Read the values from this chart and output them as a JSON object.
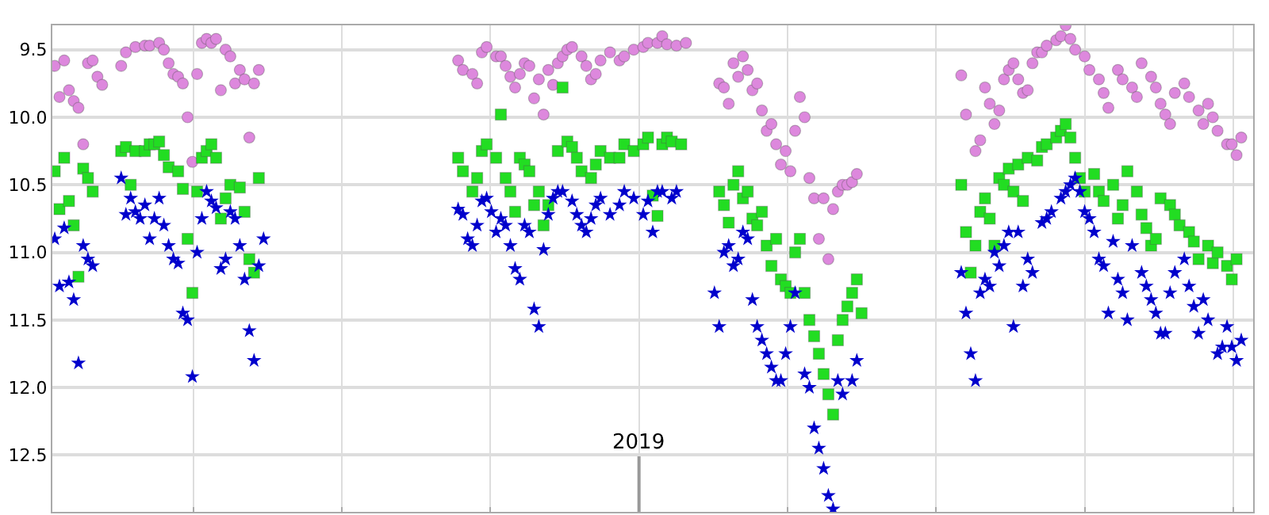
{
  "chart_data": {
    "type": "scatter",
    "categories": [
      null,
      null,
      null,
      null,
      null,
      null,
      null,
      null,
      null,
      null,
      null,
      null,
      null,
      null,
      null,
      null,
      null,
      null,
      null,
      null,
      null,
      null,
      null,
      null,
      null,
      null,
      null,
      null,
      null,
      null,
      null,
      null,
      null,
      null,
      null,
      null,
      null,
      null,
      null,
      null,
      null,
      null,
      null,
      null,
      null,
      null,
      null,
      null,
      null,
      null,
      null,
      null,
      null,
      null,
      null,
      null,
      null,
      null,
      null,
      null,
      null,
      null,
      null,
      null,
      null,
      null,
      null,
      null,
      null,
      null,
      null,
      null,
      null,
      null,
      null,
      null,
      null,
      null,
      null,
      null,
      null,
      null,
      null,
      null,
      null,
      null,
      null,
      null,
      null,
      null,
      null,
      null,
      null,
      null,
      null,
      null,
      null,
      null,
      null,
      null,
      null,
      null,
      null,
      null,
      null,
      null,
      null,
      null,
      null,
      null,
      null,
      null,
      null,
      null,
      null,
      null,
      null,
      null,
      null,
      null,
      null,
      null,
      null,
      null,
      null,
      null,
      null,
      null,
      null,
      null,
      null,
      null,
      null,
      null,
      null,
      null,
      null,
      null,
      null,
      null,
      null,
      null,
      null,
      null,
      null,
      null,
      null,
      null,
      null,
      null,
      null,
      null,
      null,
      null,
      null,
      null,
      null,
      null,
      null,
      null,
      null,
      null,
      null,
      null,
      null,
      null,
      null,
      null,
      null,
      null,
      null,
      null,
      null,
      null,
      null,
      null,
      null,
      null,
      null,
      null,
      null,
      null,
      null,
      null,
      null,
      null,
      null,
      null,
      null,
      null,
      null,
      null,
      null,
      null,
      null,
      null,
      null,
      null,
      null,
      null,
      null,
      null,
      null,
      null,
      null,
      null,
      null,
      null,
      null,
      null,
      null,
      null,
      null,
      null,
      null,
      null,
      null,
      null,
      null,
      null,
      null,
      null,
      null,
      null,
      null,
      null,
      null,
      null,
      null,
      null,
      null,
      null,
      null,
      null,
      null,
      null,
      null,
      null,
      null,
      null,
      null,
      null,
      null,
      null,
      null,
      null,
      null,
      null,
      null,
      null,
      null,
      null,
      null
    ],
    "ylim": [
      12.92,
      9.32
    ],
    "yticks": [
      {
        "value": 9.5,
        "label": "9.5"
      },
      {
        "value": 10,
        "label": "10.0"
      },
      {
        "value": 10.5,
        "label": "10.5"
      },
      {
        "value": 11,
        "label": "11.0"
      },
      {
        "value": 11.5,
        "label": "11.5"
      },
      {
        "value": 12,
        "label": "12.0"
      },
      {
        "value": 12.5,
        "label": "12.5"
      }
    ],
    "grid": true,
    "annotations": [
      "2019"
    ],
    "series": [
      {
        "color": "#dd88dd",
        "marker": "circle",
        "values": [
          9.62,
          9.85,
          9.58,
          9.8,
          9.88,
          9.93,
          10.2,
          9.6,
          9.58,
          9.7,
          9.76,
          null,
          null,
          null,
          9.62,
          9.52,
          null,
          9.48,
          null,
          9.47,
          9.47,
          null,
          9.45,
          9.5,
          9.6,
          9.68,
          9.7,
          9.75,
          10.0,
          10.33,
          9.68,
          9.45,
          9.42,
          9.45,
          9.42,
          9.8,
          9.5,
          9.55,
          9.75,
          9.65,
          9.72,
          10.15,
          9.75,
          9.65,
          null,
          null,
          null,
          null,
          null,
          null,
          null,
          null,
          null,
          null,
          null,
          null,
          null,
          null,
          null,
          null,
          null,
          null,
          null,
          null,
          null,
          null,
          null,
          null,
          null,
          null,
          null,
          null,
          null,
          null,
          null,
          null,
          null,
          null,
          null,
          null,
          null,
          null,
          null,
          null,
          null,
          9.58,
          9.65,
          null,
          9.68,
          9.75,
          9.52,
          9.48,
          null,
          9.55,
          9.55,
          9.62,
          9.7,
          9.78,
          9.68,
          9.6,
          9.62,
          9.86,
          9.72,
          9.98,
          9.65,
          9.76,
          9.6,
          9.55,
          9.5,
          9.48,
          null,
          9.55,
          9.62,
          9.72,
          9.68,
          9.58,
          null,
          9.52,
          null,
          9.58,
          9.55,
          null,
          9.5,
          null,
          9.48,
          9.45,
          null,
          9.45,
          9.4,
          9.46,
          null,
          9.47,
          null,
          9.45,
          null,
          null,
          null,
          null,
          null,
          null,
          9.75,
          9.78,
          9.9,
          9.6,
          9.7,
          9.55,
          9.65,
          9.8,
          9.75,
          9.95,
          10.1,
          10.05,
          10.2,
          10.35,
          10.25,
          10.4,
          10.1,
          9.85,
          10.0,
          10.45,
          10.6,
          10.9,
          10.6,
          11.05,
          10.68,
          10.55,
          10.5,
          10.5,
          10.48,
          10.42,
          null,
          null,
          null,
          null,
          null,
          null,
          null,
          null,
          null,
          null,
          null,
          null,
          null,
          null,
          null,
          null,
          null,
          null,
          null,
          null,
          null,
          9.69,
          9.98,
          null,
          10.25,
          10.17,
          9.78,
          9.9,
          10.05,
          9.95,
          9.72,
          9.65,
          9.6,
          9.72,
          9.82,
          9.8,
          9.6,
          9.52,
          9.52,
          9.47,
          null,
          9.43,
          9.4,
          9.32,
          9.42,
          9.5,
          null,
          9.55,
          9.65,
          null,
          9.72,
          9.82,
          9.93,
          null,
          9.65,
          9.72,
          null,
          9.78,
          9.85,
          9.6,
          null,
          9.7,
          9.78,
          9.9,
          9.98,
          10.05,
          9.82,
          null,
          9.75,
          9.85,
          null,
          9.95,
          10.05,
          9.9,
          10.0,
          10.1,
          null,
          10.2,
          10.2,
          10.28,
          10.15,
          null,
          null
        ]
      },
      {
        "color": "#22dd22",
        "marker": "square",
        "values": [
          10.4,
          10.68,
          10.3,
          10.62,
          10.8,
          11.18,
          10.38,
          10.45,
          10.55,
          null,
          null,
          null,
          null,
          null,
          10.25,
          10.22,
          10.5,
          10.25,
          null,
          10.25,
          10.2,
          10.2,
          10.18,
          10.28,
          10.37,
          null,
          10.4,
          10.53,
          10.9,
          11.3,
          10.55,
          10.3,
          10.25,
          10.2,
          10.3,
          10.75,
          10.6,
          10.5,
          null,
          10.52,
          10.7,
          11.05,
          11.15,
          10.45,
          null,
          null,
          null,
          null,
          null,
          null,
          null,
          null,
          null,
          null,
          null,
          null,
          null,
          null,
          null,
          null,
          null,
          null,
          null,
          null,
          null,
          null,
          null,
          null,
          null,
          null,
          null,
          null,
          null,
          null,
          null,
          null,
          null,
          null,
          null,
          null,
          null,
          null,
          null,
          null,
          null,
          10.3,
          10.4,
          null,
          10.55,
          10.45,
          10.25,
          10.2,
          null,
          10.3,
          9.98,
          10.45,
          10.55,
          10.7,
          10.3,
          10.35,
          10.4,
          10.65,
          10.55,
          10.8,
          10.65,
          null,
          10.25,
          9.78,
          10.18,
          10.22,
          10.3,
          10.4,
          null,
          10.45,
          10.35,
          10.25,
          null,
          10.3,
          null,
          10.3,
          10.2,
          null,
          10.25,
          null,
          10.2,
          10.15,
          10.58,
          10.73,
          10.2,
          10.15,
          10.18,
          null,
          10.2,
          null,
          null,
          null,
          null,
          null,
          null,
          null,
          10.55,
          10.65,
          10.78,
          10.5,
          10.4,
          10.6,
          10.55,
          10.75,
          10.8,
          10.7,
          10.95,
          11.1,
          10.9,
          11.2,
          11.25,
          11.3,
          11.0,
          10.9,
          11.3,
          11.5,
          11.62,
          11.75,
          11.9,
          12.05,
          12.2,
          11.65,
          11.5,
          11.4,
          11.3,
          11.2,
          11.45,
          null,
          null,
          null,
          null,
          null,
          null,
          null,
          null,
          null,
          null,
          null,
          null,
          null,
          null,
          null,
          null,
          null,
          null,
          null,
          null,
          10.5,
          10.85,
          11.15,
          10.95,
          10.7,
          10.6,
          10.75,
          10.95,
          10.45,
          10.5,
          10.38,
          10.55,
          10.35,
          10.62,
          10.3,
          null,
          10.32,
          10.22,
          10.2,
          null,
          10.15,
          10.1,
          10.05,
          10.15,
          10.3,
          10.45,
          10.55,
          null,
          10.42,
          10.55,
          10.62,
          null,
          10.5,
          10.75,
          10.65,
          10.4,
          null,
          10.55,
          10.72,
          10.82,
          10.95,
          10.9,
          10.6,
          null,
          10.65,
          10.72,
          10.8,
          null,
          10.85,
          10.92,
          11.05,
          null,
          10.95,
          11.08,
          11.0,
          null,
          11.1,
          11.2,
          11.05,
          null,
          null,
          null
        ]
      },
      {
        "color": "#0000cc",
        "marker": "star",
        "values": [
          10.9,
          11.25,
          10.82,
          11.22,
          11.35,
          11.82,
          10.95,
          11.05,
          11.1,
          null,
          null,
          null,
          null,
          null,
          10.45,
          10.72,
          10.6,
          10.7,
          10.75,
          10.65,
          10.9,
          10.75,
          10.6,
          10.8,
          10.95,
          11.05,
          11.08,
          11.45,
          11.5,
          11.92,
          11.0,
          10.75,
          10.55,
          10.62,
          10.67,
          11.12,
          11.05,
          10.7,
          10.75,
          10.95,
          11.2,
          11.58,
          11.8,
          11.1,
          10.9,
          null,
          null,
          null,
          null,
          null,
          null,
          null,
          null,
          null,
          null,
          null,
          null,
          null,
          null,
          null,
          null,
          null,
          null,
          null,
          null,
          null,
          null,
          null,
          null,
          null,
          null,
          null,
          null,
          null,
          null,
          null,
          null,
          null,
          null,
          null,
          null,
          null,
          null,
          null,
          null,
          10.68,
          10.72,
          10.9,
          10.95,
          10.8,
          10.62,
          10.6,
          10.7,
          10.85,
          10.75,
          10.8,
          10.95,
          11.12,
          11.2,
          10.8,
          10.85,
          11.42,
          11.55,
          10.98,
          10.72,
          10.6,
          10.55,
          10.55,
          null,
          10.62,
          10.72,
          10.8,
          10.85,
          10.75,
          10.65,
          10.6,
          null,
          10.72,
          null,
          10.65,
          10.55,
          null,
          10.6,
          null,
          10.72,
          10.62,
          10.85,
          10.55,
          10.55,
          null,
          10.6,
          10.55,
          null,
          null,
          null,
          null,
          null,
          null,
          null,
          11.3,
          11.55,
          11.0,
          10.95,
          11.1,
          11.05,
          10.85,
          10.9,
          11.35,
          11.55,
          11.65,
          11.75,
          11.85,
          11.95,
          11.95,
          11.75,
          11.55,
          11.3,
          null,
          11.9,
          12.0,
          12.3,
          12.45,
          12.6,
          12.8,
          12.9,
          11.95,
          12.05,
          null,
          11.95,
          11.8,
          null,
          null,
          null,
          null,
          null,
          null,
          null,
          null,
          null,
          null,
          null,
          null,
          null,
          null,
          null,
          null,
          null,
          null,
          null,
          null,
          null,
          11.15,
          11.45,
          11.75,
          11.95,
          11.3,
          11.2,
          11.25,
          11.0,
          11.1,
          10.95,
          10.85,
          11.55,
          10.85,
          11.25,
          11.05,
          11.15,
          null,
          10.78,
          10.75,
          10.7,
          null,
          10.6,
          10.55,
          10.5,
          10.45,
          10.55,
          10.7,
          10.75,
          10.85,
          11.05,
          11.1,
          11.45,
          10.92,
          11.2,
          11.3,
          11.5,
          10.95,
          null,
          11.15,
          11.25,
          11.35,
          11.45,
          11.6,
          11.6,
          11.3,
          11.15,
          null,
          11.05,
          11.25,
          11.4,
          11.6,
          11.35,
          11.5,
          null,
          11.75,
          11.7,
          11.55,
          11.7,
          11.8,
          11.65,
          null,
          null
        ]
      }
    ]
  }
}
